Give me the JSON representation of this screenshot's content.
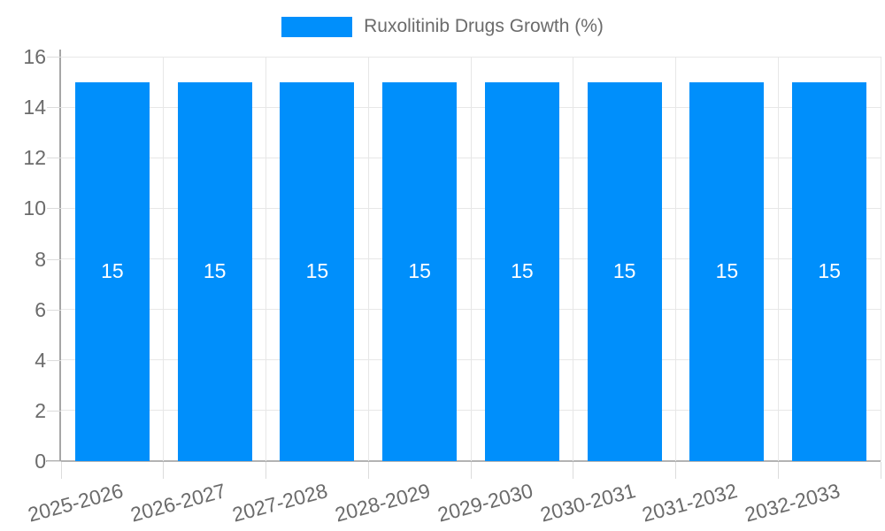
{
  "legend": {
    "label": "Ruxolitinib Drugs Growth (%)"
  },
  "colors": {
    "series": "#008FFB",
    "label_text": "#6b6b6b",
    "bar_value_text": "#ffffff",
    "gridline": "#e7e7e7",
    "axis_line": "#a6a6a6"
  },
  "chart_data": {
    "type": "bar",
    "title": "",
    "xlabel": "",
    "ylabel": "",
    "categories": [
      "2025-2026",
      "2026-2027",
      "2027-2028",
      "2028-2029",
      "2029-2030",
      "2030-2031",
      "2031-2032",
      "2032-2033"
    ],
    "series": [
      {
        "name": "Ruxolitinib Drugs Growth (%)",
        "values": [
          15,
          15,
          15,
          15,
          15,
          15,
          15,
          15
        ]
      }
    ],
    "data_labels": [
      "15",
      "15",
      "15",
      "15",
      "15",
      "15",
      "15",
      "15"
    ],
    "ylim": [
      0,
      16
    ],
    "yticks": [
      0,
      2,
      4,
      6,
      8,
      10,
      12,
      14,
      16
    ],
    "grid": true,
    "legend_position": "top",
    "x_label_rotation": -15
  }
}
